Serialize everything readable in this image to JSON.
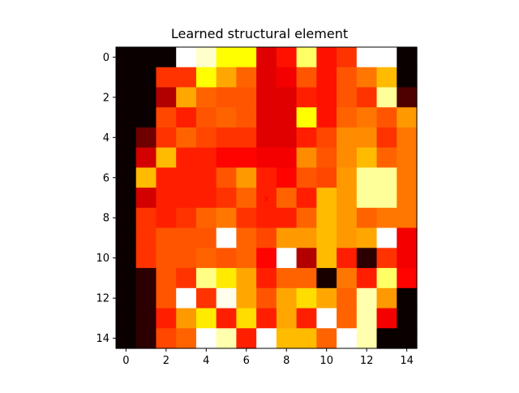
{
  "chart_data": {
    "type": "heatmap",
    "title": "Learned structural element",
    "xlabel": "",
    "ylabel": "",
    "colormap": "hot",
    "vmin": 0,
    "vmax": 1,
    "marker_label": "x",
    "marker_color": "#ff0000",
    "marker_cell": [
      7,
      7
    ],
    "x_ticks": [
      0,
      2,
      4,
      6,
      8,
      10,
      12,
      14
    ],
    "y_ticks": [
      0,
      2,
      4,
      6,
      8,
      10,
      12,
      14
    ],
    "values": [
      [
        0.0,
        0.0,
        0.0,
        1.0,
        0.95,
        0.75,
        0.75,
        0.32,
        0.4,
        0.85,
        0.4,
        0.45,
        1.0,
        1.0,
        0.0
      ],
      [
        0.0,
        0.0,
        0.45,
        0.45,
        0.75,
        0.62,
        0.52,
        0.32,
        0.35,
        0.5,
        0.4,
        0.5,
        0.55,
        0.65,
        0.0
      ],
      [
        0.0,
        0.0,
        0.25,
        0.62,
        0.52,
        0.5,
        0.5,
        0.32,
        0.32,
        0.42,
        0.4,
        0.5,
        0.45,
        0.9,
        0.1
      ],
      [
        0.0,
        0.0,
        0.48,
        0.42,
        0.5,
        0.52,
        0.5,
        0.32,
        0.32,
        0.75,
        0.4,
        0.52,
        0.55,
        0.5,
        0.6
      ],
      [
        0.0,
        0.15,
        0.45,
        0.52,
        0.48,
        0.45,
        0.45,
        0.32,
        0.32,
        0.42,
        0.48,
        0.58,
        0.58,
        0.45,
        0.55
      ],
      [
        0.0,
        0.3,
        0.65,
        0.42,
        0.42,
        0.38,
        0.38,
        0.35,
        0.35,
        0.58,
        0.5,
        0.58,
        0.65,
        0.52,
        0.55
      ],
      [
        0.0,
        0.65,
        0.42,
        0.42,
        0.42,
        0.5,
        0.6,
        0.42,
        0.38,
        0.5,
        0.48,
        0.6,
        0.9,
        0.9,
        0.55
      ],
      [
        0.0,
        0.3,
        0.42,
        0.42,
        0.42,
        0.45,
        0.52,
        0.42,
        0.52,
        0.42,
        0.65,
        0.6,
        0.9,
        0.9,
        0.55
      ],
      [
        0.0,
        0.45,
        0.42,
        0.45,
        0.52,
        0.55,
        0.45,
        0.42,
        0.42,
        0.52,
        0.65,
        0.6,
        0.52,
        0.55,
        0.55
      ],
      [
        0.0,
        0.45,
        0.5,
        0.5,
        0.5,
        1.0,
        0.52,
        0.48,
        0.6,
        0.6,
        0.65,
        0.6,
        0.62,
        1.0,
        0.35
      ],
      [
        0.0,
        0.45,
        0.5,
        0.5,
        0.52,
        0.5,
        0.52,
        0.38,
        1.0,
        0.25,
        0.65,
        0.42,
        0.05,
        0.45,
        0.35
      ],
      [
        0.0,
        0.05,
        0.5,
        0.45,
        0.88,
        0.72,
        0.62,
        0.42,
        0.52,
        0.52,
        0.02,
        0.55,
        0.42,
        0.85,
        0.38
      ],
      [
        0.0,
        0.05,
        0.5,
        1.0,
        0.45,
        0.98,
        0.62,
        0.5,
        0.62,
        0.7,
        0.62,
        0.52,
        0.92,
        0.6,
        0.0
      ],
      [
        0.0,
        0.05,
        0.42,
        0.6,
        0.72,
        0.42,
        0.7,
        0.42,
        0.62,
        0.42,
        1.0,
        0.52,
        0.92,
        0.35,
        0.0
      ],
      [
        0.0,
        0.05,
        0.48,
        0.52,
        1.0,
        0.92,
        0.42,
        1.0,
        0.65,
        0.65,
        0.52,
        1.0,
        0.92,
        0.0,
        0.0
      ]
    ]
  }
}
